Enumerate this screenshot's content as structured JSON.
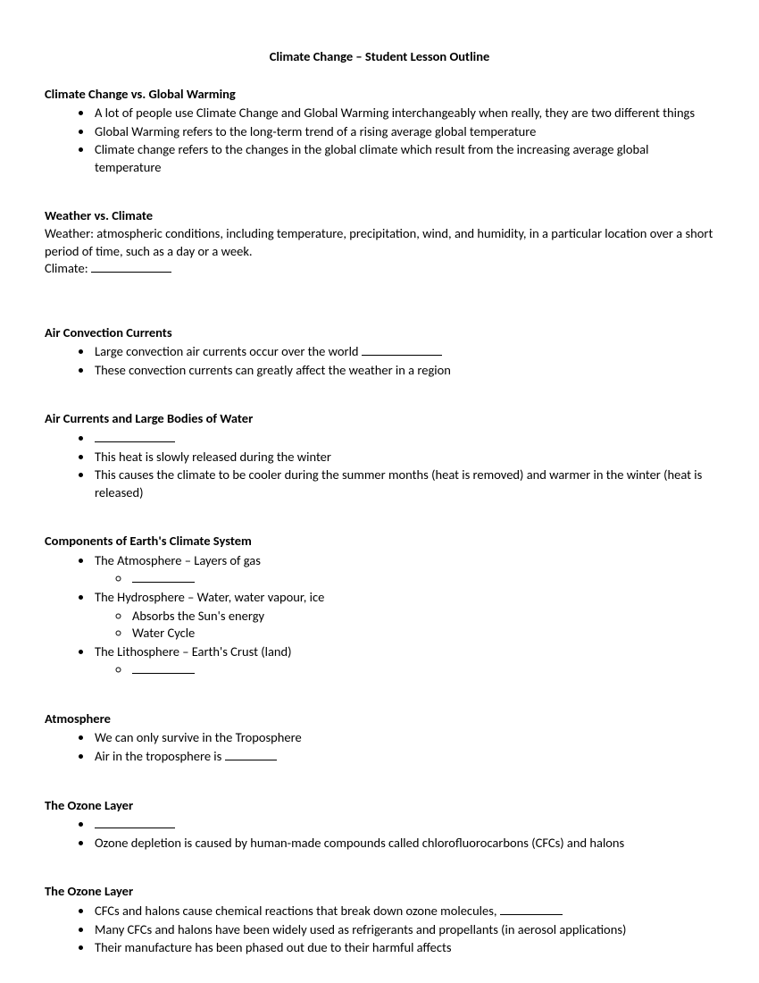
{
  "title": "Climate Change – Student Lesson Outline",
  "sections": {
    "ccgw": {
      "heading": "Climate Change vs. Global Warming",
      "b1": "A lot of people use Climate Change and Global Warming interchangeably when really, they are two different things",
      "b2": "Global Warming refers to the long-term trend of a rising average global temperature",
      "b3": "Climate change refers to the changes in the global climate which result from the increasing average global temperature"
    },
    "wvc": {
      "heading": "Weather vs. Climate",
      "p1": "Weather: atmospheric conditions, including temperature, precipitation, wind, and humidity, in a particular location over a short period of time, such as a day or a week.",
      "p2_prefix": "Climate: "
    },
    "acc": {
      "heading": "Air Convection Currents",
      "b1_prefix": "Large convection air currents occur over the world ",
      "b2": "These convection currents can greatly affect the weather in a region"
    },
    "aclbw": {
      "heading": "Air Currents and Large Bodies of Water",
      "b2": "This heat is slowly released during the winter",
      "b3": "This causes the climate to be cooler during the summer months (heat is removed) and warmer in the winter (heat is released)"
    },
    "cecs": {
      "heading": "Components of Earth's Climate System",
      "b1": "The Atmosphere – Layers of gas",
      "b2": "The Hydrosphere – Water, water vapour, ice",
      "b2s1": "Absorbs the Sun's energy",
      "b2s2": "Water Cycle",
      "b3": "The Lithosphere – Earth's Crust (land)"
    },
    "atm": {
      "heading": "Atmosphere",
      "b1": "We can only survive in the Troposphere",
      "b2_prefix": "Air in the troposphere is "
    },
    "oz1": {
      "heading": "The Ozone Layer",
      "b2": "Ozone depletion is caused by human-made compounds called chlorofluorocarbons (CFCs) and halons"
    },
    "oz2": {
      "heading": "The Ozone Layer",
      "b1_prefix": "CFCs and halons cause chemical reactions that break down ozone molecules, ",
      "b2": "Many CFCs and halons have been widely used as refrigerants and propellants (in aerosol applications)",
      "b3": "Their manufacture has been phased out due to their harmful affects"
    }
  }
}
